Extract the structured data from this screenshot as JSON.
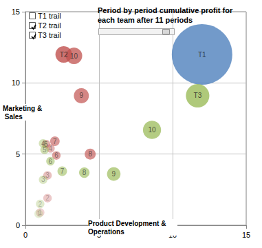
{
  "chart_data": {
    "type": "bubble",
    "title": "Period by period cumulative profit for each team after 11 periods",
    "x_label": "Product Development & Operations",
    "y_label": "Marketing & Sales",
    "xlim": [
      0,
      15
    ],
    "xticks": [
      0,
      5,
      10,
      15
    ],
    "ylim": [
      0,
      15
    ],
    "yticks": [
      0,
      5,
      10,
      15
    ],
    "grid": true,
    "series": [
      {
        "name": "T1",
        "legend_label": "T1 trail",
        "checked": false,
        "color": "#4f81bd",
        "labels": [
          "T1"
        ],
        "x": [
          12.0
        ],
        "y": [
          12.0
        ],
        "sizes": [
          100
        ]
      },
      {
        "name": "T2",
        "legend_label": "T2 trail",
        "checked": true,
        "color": "#c0504d",
        "labels": [
          "1",
          "2",
          "3",
          "4",
          "5",
          "6",
          "7",
          "8",
          "9",
          "10",
          "T2"
        ],
        "x": [
          1.0,
          1.5,
          1.5,
          1.7,
          1.4,
          2.1,
          2.0,
          4.4,
          3.8,
          3.3,
          2.6
        ],
        "y": [
          0.9,
          1.9,
          3.5,
          5.4,
          5.7,
          4.9,
          5.9,
          5.0,
          9.1,
          11.9,
          12.0
        ],
        "sizes": [
          2,
          2,
          2,
          2,
          2,
          2,
          2.5,
          3.3,
          6.2,
          7.4,
          7.5
        ]
      },
      {
        "name": "T3",
        "legend_label": "T3 trail",
        "checked": true,
        "color": "#9bbb59",
        "labels": [
          "1",
          "2",
          "3",
          "4",
          "5",
          "6",
          "7",
          "8",
          "9",
          "10",
          "T3"
        ],
        "x": [
          0.9,
          1.0,
          1.2,
          1.2,
          1.3,
          1.7,
          2.5,
          4.0,
          6.0,
          8.6,
          11.7
        ],
        "y": [
          0.8,
          1.5,
          3.2,
          5.75,
          5.3,
          4.5,
          3.8,
          3.7,
          3.6,
          6.7,
          9.1
        ],
        "sizes": [
          2,
          2,
          2,
          2,
          2,
          2,
          2.5,
          3,
          5,
          9,
          15
        ]
      }
    ]
  }
}
